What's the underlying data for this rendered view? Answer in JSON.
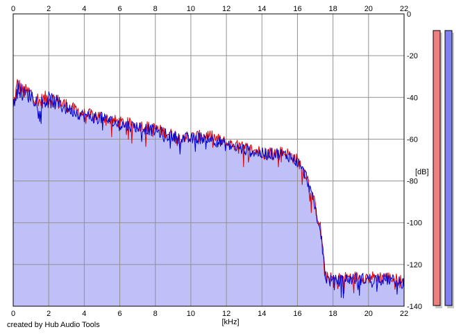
{
  "chart_data": {
    "type": "area",
    "xlabel": "[kHz]",
    "ylabel": "[dB]",
    "xlim": [
      0,
      22
    ],
    "ylim": [
      -140,
      0
    ],
    "x_ticks": [
      "0",
      "2",
      "4",
      "6",
      "8",
      "10",
      "12",
      "14",
      "16",
      "18",
      "20",
      "22"
    ],
    "y_ticks": [
      "0",
      "-20",
      "-40",
      "-60",
      "-80",
      "-100",
      "-120",
      "-140"
    ],
    "grid": true,
    "series": [
      {
        "name": "",
        "color": "#e00000",
        "envelope_x": [
          0,
          0.25,
          0.5,
          1,
          1.5,
          2,
          3,
          4,
          5,
          6,
          7,
          8,
          9,
          10,
          11,
          12,
          13,
          14,
          15,
          15.5,
          16,
          16.5,
          17,
          17.3,
          17.6,
          18,
          19,
          20,
          21,
          22
        ],
        "envelope_y": [
          -45,
          -33,
          -37,
          -38,
          -42,
          -40,
          -44,
          -48,
          -49,
          -52,
          -53,
          -55,
          -58,
          -59,
          -58,
          -62,
          -64,
          -66,
          -66,
          -67,
          -70,
          -77,
          -92,
          -103,
          -126,
          -127,
          -126,
          -126,
          -126,
          -128
        ]
      },
      {
        "name": "",
        "color": "#0000d0",
        "envelope_x": [
          0,
          0.25,
          0.5,
          1,
          1.5,
          2,
          3,
          4,
          5,
          6,
          7,
          8,
          9,
          10,
          11,
          12,
          13,
          14,
          15,
          15.5,
          16,
          16.5,
          17,
          17.3,
          17.6,
          18,
          19,
          20,
          21,
          22
        ],
        "envelope_y": [
          -46,
          -34,
          -38,
          -39,
          -43,
          -41,
          -45,
          -49,
          -50,
          -53,
          -54,
          -56,
          -59,
          -60,
          -59,
          -63,
          -65,
          -67,
          -67,
          -68,
          -71,
          -78,
          -93,
          -104,
          -127,
          -128,
          -127,
          -127,
          -127,
          -129
        ]
      }
    ],
    "fill_color": "#c0c0f8"
  },
  "meters": {
    "left_color": "#f08080",
    "right_color": "#8080f0"
  },
  "credit": "created by Hub Audio Tools"
}
